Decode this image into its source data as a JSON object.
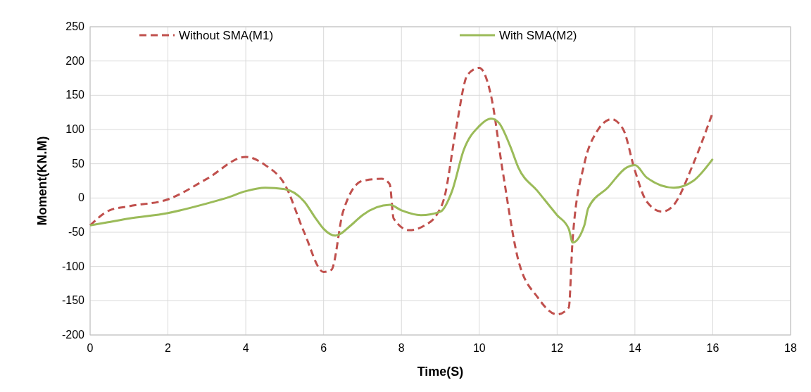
{
  "chart_data": {
    "type": "line",
    "xlabel": "Time(S)",
    "ylabel": "Moment(KN.M)",
    "xlim": [
      0,
      18
    ],
    "xticks": [
      0,
      2,
      4,
      6,
      8,
      10,
      12,
      14,
      16,
      18
    ],
    "ylim": [
      -200,
      250
    ],
    "yticks": [
      -200,
      -150,
      -100,
      -50,
      0,
      50,
      100,
      150,
      200,
      250
    ],
    "grid": true,
    "legend": "top",
    "series": [
      {
        "name": "Without SMA(M1)",
        "color": "#c0504d",
        "line_style": "dashed",
        "x": [
          0,
          0.5,
          1,
          2,
          3,
          4,
          4.5,
          5,
          5.5,
          6,
          6.2,
          6.5,
          7,
          7.5,
          7.7,
          7.8,
          8.2,
          8.6,
          8.9,
          9.1,
          9.4,
          9.7,
          10,
          10.3,
          10.6,
          11,
          11.5,
          12,
          12.3,
          12.4,
          12.7,
          13,
          13.4,
          13.7,
          14,
          14.3,
          14.7,
          15,
          15.5,
          16
        ],
        "values": [
          -40,
          -18,
          -12,
          -2,
          28,
          60,
          48,
          20,
          -50,
          -108,
          -105,
          -20,
          25,
          28,
          20,
          -30,
          -47,
          -40,
          -25,
          0,
          100,
          180,
          190,
          150,
          40,
          -90,
          -145,
          -170,
          -160,
          -60,
          50,
          95,
          115,
          100,
          40,
          -5,
          -20,
          -10,
          50,
          125
        ]
      },
      {
        "name": "With SMA(M2)",
        "color": "#9bbb59",
        "line_style": "solid",
        "x": [
          0,
          0.5,
          1,
          2,
          3,
          3.5,
          4,
          4.5,
          5,
          5.5,
          5.8,
          6,
          6.3,
          6.7,
          7,
          7.7,
          8,
          8.5,
          9,
          9.3,
          9.6,
          10,
          10.3,
          10.5,
          10.8,
          11,
          11.5,
          12,
          12.3,
          12.4,
          12.7,
          12.8,
          13.3,
          13.8,
          14,
          14.3,
          15,
          15.5,
          16
        ],
        "values": [
          -40,
          -35,
          -30,
          -22,
          -8,
          0,
          10,
          15,
          13,
          -5,
          -30,
          -45,
          -55,
          -40,
          -25,
          -10,
          -18,
          -25,
          -20,
          10,
          70,
          105,
          116,
          110,
          75,
          45,
          10,
          -25,
          -45,
          -65,
          -40,
          -15,
          15,
          45,
          48,
          30,
          15,
          25,
          57
        ]
      }
    ]
  }
}
